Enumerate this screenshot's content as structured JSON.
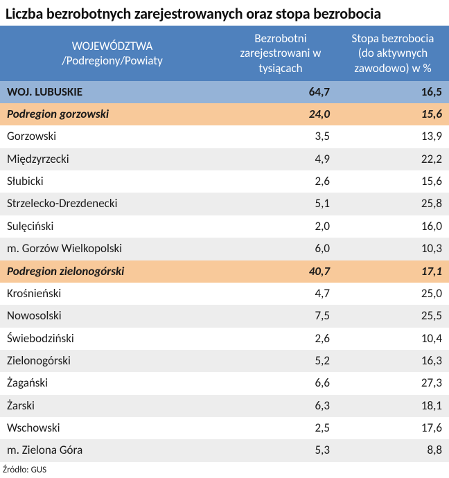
{
  "title": "Liczba bezrobotnych zarejestrowanych oraz stopa bezrobocia",
  "columns": {
    "name": "WOJEWÓDZTWA\n/Podregiony/Powiaty",
    "unemployed": "Bezrobotni zarejestrowani w tysiącach",
    "rate": "Stopa bezrobocia (do aktywnych zawodowo) w %"
  },
  "colors": {
    "header_bg": "#4f81bd",
    "header_text": "#ffffff",
    "region_bg": "#95b3d7",
    "subregion_bg": "#f8c99a",
    "stripe_odd": "#ededed",
    "stripe_even": "#ffffff",
    "title_text": "#0f0f0f",
    "body_text": "#1a1a1a"
  },
  "rows": [
    {
      "type": "region",
      "name": "WOJ. LUBUSKIE",
      "unemployed": "64,7",
      "rate": "16,5"
    },
    {
      "type": "sub",
      "name": "Podregion gorzowski",
      "unemployed": "24,0",
      "rate": "15,6"
    },
    {
      "type": "data",
      "name": "Gorzowski",
      "unemployed": "3,5",
      "rate": "13,9"
    },
    {
      "type": "data",
      "name": "Międzyrzecki",
      "unemployed": "4,9",
      "rate": "22,2"
    },
    {
      "type": "data",
      "name": "Słubicki",
      "unemployed": "2,6",
      "rate": "15,6"
    },
    {
      "type": "data",
      "name": "Strzelecko-Drezdenecki",
      "unemployed": "5,1",
      "rate": "25,8"
    },
    {
      "type": "data",
      "name": "Sulęciński",
      "unemployed": "2,0",
      "rate": "16,0"
    },
    {
      "type": "data",
      "name": "m. Gorzów Wielkopolski",
      "unemployed": "6,0",
      "rate": "10,3"
    },
    {
      "type": "sub",
      "name": "Podregion zielonogórski",
      "unemployed": "40,7",
      "rate": "17,1"
    },
    {
      "type": "data",
      "name": "Krośnieński",
      "unemployed": "4,7",
      "rate": "25,0"
    },
    {
      "type": "data",
      "name": "Nowosolski",
      "unemployed": "7,5",
      "rate": "25,5"
    },
    {
      "type": "data",
      "name": "Świebodziński",
      "unemployed": "2,6",
      "rate": "10,4"
    },
    {
      "type": "data",
      "name": "Zielonogórski",
      "unemployed": "5,2",
      "rate": "16,3"
    },
    {
      "type": "data",
      "name": "Żagański",
      "unemployed": "6,6",
      "rate": "27,3"
    },
    {
      "type": "data",
      "name": "Żarski",
      "unemployed": "6,3",
      "rate": "18,1"
    },
    {
      "type": "data",
      "name": "Wschowski",
      "unemployed": "2,5",
      "rate": "17,6"
    },
    {
      "type": "data",
      "name": "m. Zielona Góra",
      "unemployed": "5,3",
      "rate": "8,8"
    }
  ],
  "source": "Źródło: GUS"
}
